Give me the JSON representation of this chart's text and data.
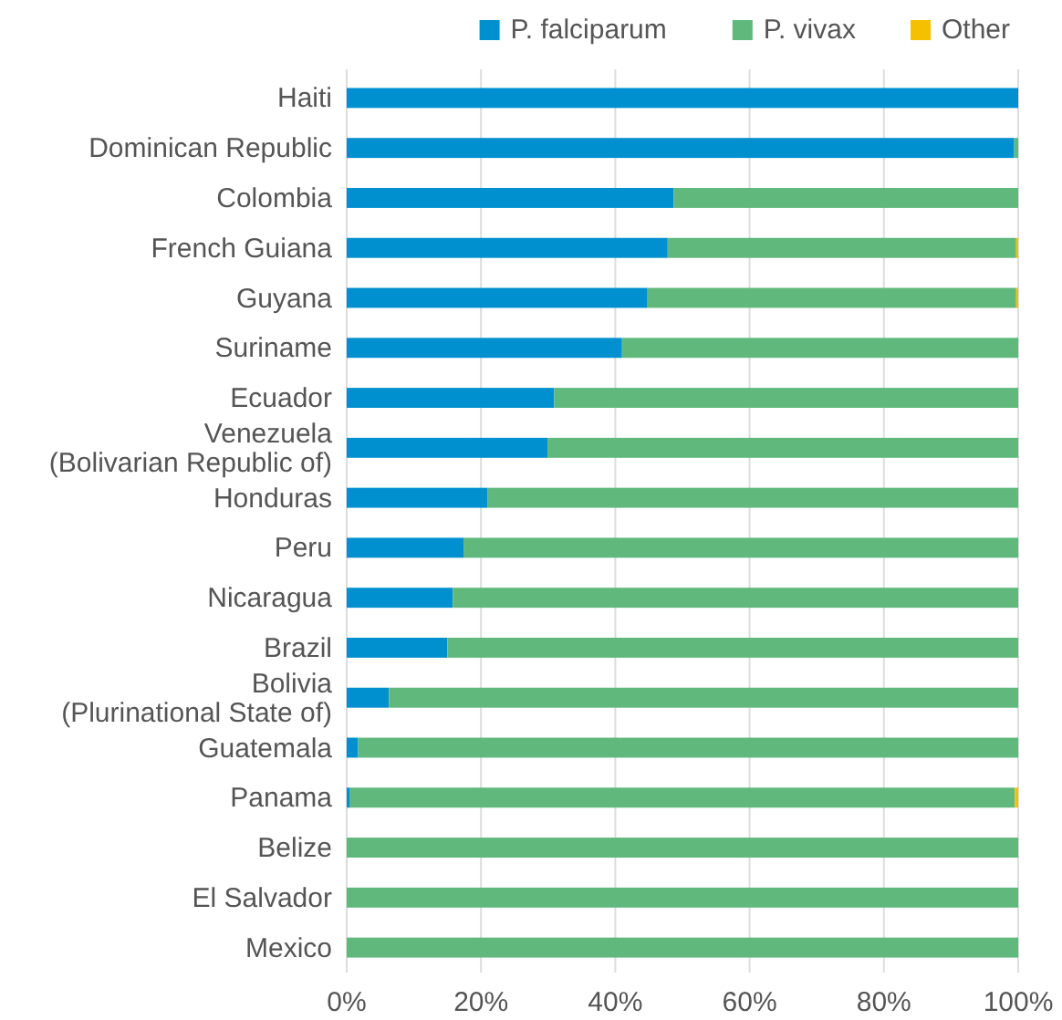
{
  "chart_data": {
    "type": "bar",
    "orientation": "horizontal",
    "stacked": true,
    "categories": [
      "Haiti",
      "Dominican Republic",
      "Colombia",
      "French Guiana",
      "Guyana",
      "Suriname",
      "Ecuador",
      "Venezuela\n(Bolivarian Republic of)",
      "Honduras",
      "Peru",
      "Nicaragua",
      "Brazil",
      "Bolivia\n(Plurinational State of)",
      "Guatemala",
      "Panama",
      "Belize",
      "El Salvador",
      "Mexico"
    ],
    "series": [
      {
        "name": "P. falciparum",
        "color": "#0090d0",
        "values": [
          100,
          99.4,
          48.7,
          47.8,
          44.8,
          41.0,
          30.9,
          29.9,
          21.0,
          17.4,
          15.8,
          15.0,
          6.3,
          1.7,
          0.5,
          0,
          0,
          0
        ]
      },
      {
        "name": "P. vivax",
        "color": "#60b87c",
        "values": [
          0,
          0.6,
          51.3,
          51.9,
          54.9,
          59.0,
          69.1,
          70.1,
          79.0,
          82.6,
          84.2,
          85.0,
          93.7,
          98.3,
          99.0,
          100,
          100,
          100
        ]
      },
      {
        "name": "Other",
        "color": "#f5c000",
        "values": [
          0,
          0,
          0,
          0.3,
          0.3,
          0,
          0,
          0,
          0,
          0,
          0,
          0,
          0,
          0,
          0.5,
          0,
          0,
          0
        ]
      }
    ],
    "xlim": [
      0,
      100
    ],
    "xticks": [
      {
        "value": 0,
        "label": "0%"
      },
      {
        "value": 20,
        "label": "20%"
      },
      {
        "value": 40,
        "label": "40%"
      },
      {
        "value": 60,
        "label": "60%"
      },
      {
        "value": 80,
        "label": "80%"
      },
      {
        "value": 100,
        "label": "100%"
      }
    ],
    "grid": "x",
    "legend": "top right"
  }
}
